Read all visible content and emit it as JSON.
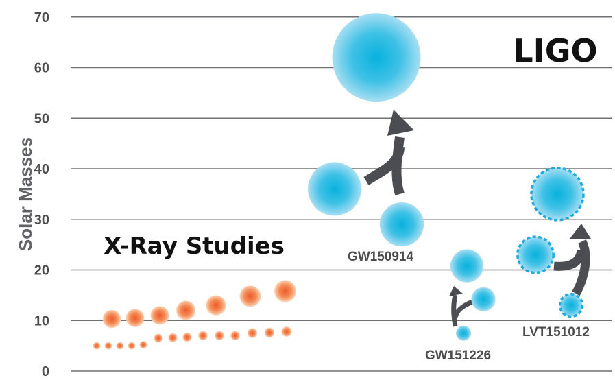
{
  "chart_data": {
    "type": "scatter",
    "ylabel": "Solar Masses",
    "ylim": [
      0,
      70
    ],
    "yticks": [
      0,
      10,
      20,
      30,
      40,
      50,
      60,
      70
    ],
    "grid": true,
    "annotations": {
      "ligo": "LIGO",
      "xray": "X-Ray Studies"
    },
    "colors": {
      "ligo": "#25b7df",
      "xray": "#f06a35",
      "arrow": "#4b4d52",
      "grid": "#707174",
      "dashed_outline": "#1fa9dc"
    },
    "xray_black_holes": {
      "upper_row": [
        10.3,
        10.5,
        11.0,
        12.0,
        13.0,
        14.8,
        15.8
      ],
      "lower_row": [
        5.0,
        5.0,
        5.0,
        5.0,
        5.2,
        6.5,
        6.6,
        6.7,
        7.0,
        7.0,
        7.0,
        7.5,
        7.6,
        7.8
      ]
    },
    "ligo_events": [
      {
        "name": "GW150914",
        "primary_mass": 36,
        "secondary_mass": 29,
        "final_mass": 62,
        "confirmed": true
      },
      {
        "name": "GW151226",
        "primary_mass": 14.2,
        "secondary_mass": 7.5,
        "final_mass": 20.8,
        "confirmed": true
      },
      {
        "name": "LVT151012",
        "primary_mass": 23,
        "secondary_mass": 13,
        "final_mass": 35,
        "confirmed": false
      }
    ]
  }
}
